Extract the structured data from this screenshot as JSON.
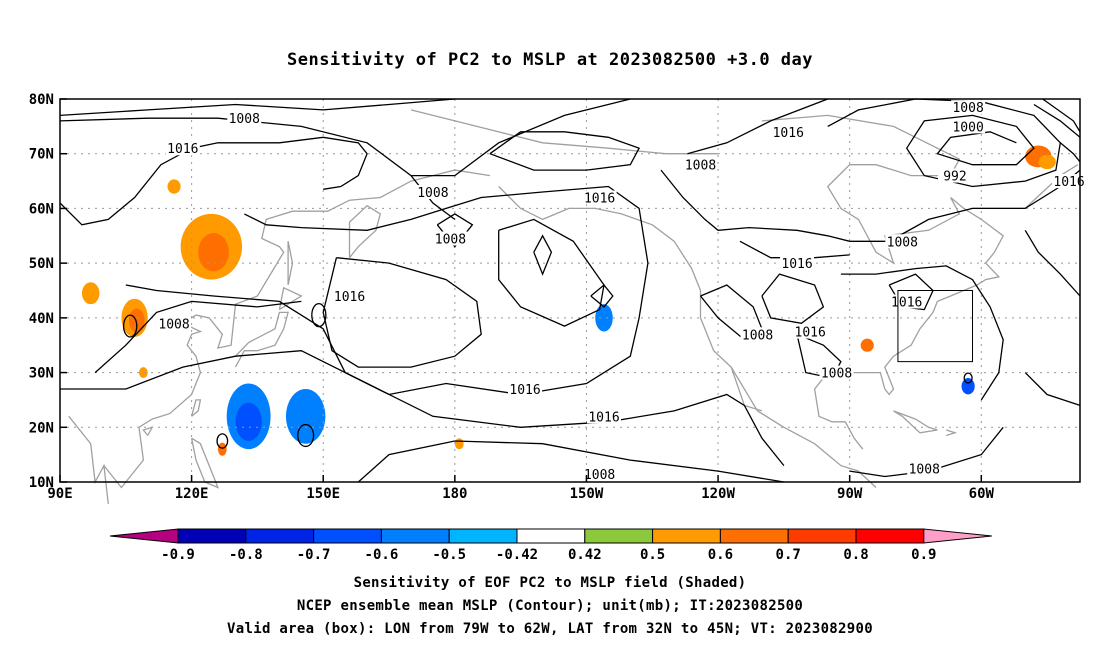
{
  "chart_data": {
    "type": "heatmap",
    "title": "Sensitivity of PC2 to MSLP at 2023082500 +3.0 day",
    "x_ticks": [
      "90E",
      "120E",
      "150E",
      "180",
      "150W",
      "120W",
      "90W",
      "60W"
    ],
    "y_ticks": [
      "10N",
      "20N",
      "30N",
      "40N",
      "50N",
      "60N",
      "70N",
      "80N"
    ],
    "x_tick_lon": [
      90,
      120,
      150,
      180,
      210,
      240,
      270,
      300
    ],
    "y_tick_lat": [
      10,
      20,
      30,
      40,
      50,
      60,
      70,
      80
    ],
    "lon_range": [
      90,
      322.5
    ],
    "lat_range": [
      10,
      80
    ],
    "grid": true,
    "colorbar": {
      "labels": [
        "-0.9",
        "-0.8",
        "-0.7",
        "-0.6",
        "-0.5",
        "-0.42",
        "0.42",
        "0.5",
        "0.6",
        "0.7",
        "0.8",
        "0.9"
      ],
      "colors": [
        "#b5007f",
        "#0000b4",
        "#0024e6",
        "#0050ff",
        "#0080ff",
        "#00b4ff",
        "#ffffff",
        "#8cc83c",
        "#ff9b00",
        "#ff6e00",
        "#ff3c00",
        "#ff0000",
        "#ff9ec8"
      ]
    },
    "contour_labels": [
      {
        "text": "1008",
        "lon": 132,
        "lat": 76.5
      },
      {
        "text": "1016",
        "lon": 118,
        "lat": 71
      },
      {
        "text": "1008",
        "lon": 175,
        "lat": 63
      },
      {
        "text": "1008",
        "lon": 179,
        "lat": 54.5
      },
      {
        "text": "1016",
        "lon": 156,
        "lat": 44
      },
      {
        "text": "1008",
        "lon": 116,
        "lat": 39
      },
      {
        "text": "1016",
        "lon": 196,
        "lat": 27
      },
      {
        "text": "1016",
        "lon": 214,
        "lat": 22
      },
      {
        "text": "1008",
        "lon": 213,
        "lat": 11.5
      },
      {
        "text": "1016",
        "lon": 213,
        "lat": 62
      },
      {
        "text": "1008",
        "lon": 236,
        "lat": 68
      },
      {
        "text": "1016",
        "lon": 256,
        "lat": 74
      },
      {
        "text": "1016",
        "lon": 258,
        "lat": 50
      },
      {
        "text": "1016",
        "lon": 261,
        "lat": 37.5
      },
      {
        "text": "1008",
        "lon": 249,
        "lat": 37
      },
      {
        "text": "1008",
        "lon": 267,
        "lat": 30
      },
      {
        "text": "1008",
        "lon": 282,
        "lat": 54
      },
      {
        "text": "1016",
        "lon": 283,
        "lat": 43
      },
      {
        "text": "1008",
        "lon": 287,
        "lat": 12.5
      },
      {
        "text": "1008",
        "lon": 297,
        "lat": 78.5
      },
      {
        "text": "1000",
        "lon": 297,
        "lat": 75
      },
      {
        "text": "992",
        "lon": 294,
        "lat": 66
      },
      {
        "text": "1016",
        "lon": 320,
        "lat": 65
      }
    ],
    "shaded_regions": [
      {
        "category": "0.5",
        "lon": 124.5,
        "lat": 53,
        "rlon": 7,
        "rlat": 6
      },
      {
        "category": "0.6",
        "lon": 125,
        "lat": 52,
        "rlon": 3.5,
        "rlat": 3.5
      },
      {
        "category": "0.5",
        "lon": 107,
        "lat": 40,
        "rlon": 3,
        "rlat": 3.5
      },
      {
        "category": "0.6",
        "lon": 107.5,
        "lat": 39.5,
        "rlon": 1.8,
        "rlat": 2.2
      },
      {
        "category": "0.5",
        "lon": 97,
        "lat": 44.5,
        "rlon": 2,
        "rlat": 2
      },
      {
        "category": "0.5",
        "lon": 116,
        "lat": 64,
        "rlon": 1.5,
        "rlat": 1.3
      },
      {
        "category": "0.5",
        "lon": 109,
        "lat": 30,
        "rlon": 1,
        "rlat": 1
      },
      {
        "category": "-0.5",
        "lon": 133,
        "lat": 22,
        "rlon": 5,
        "rlat": 6
      },
      {
        "category": "-0.6",
        "lon": 133,
        "lat": 21,
        "rlon": 3,
        "rlat": 3.5
      },
      {
        "category": "-0.5",
        "lon": 146,
        "lat": 22,
        "rlon": 4.5,
        "rlat": 5
      },
      {
        "category": "-0.5",
        "lon": 214,
        "lat": 40,
        "rlon": 2,
        "rlat": 2.5
      },
      {
        "category": "0.6",
        "lon": 127,
        "lat": 16,
        "rlon": 1,
        "rlat": 1.2
      },
      {
        "category": "0.5",
        "lon": 181,
        "lat": 17,
        "rlon": 1,
        "rlat": 1
      },
      {
        "category": "0.6",
        "lon": 274,
        "lat": 35,
        "rlon": 1.5,
        "rlat": 1.2
      },
      {
        "category": "0.6",
        "lon": 313,
        "lat": 69.5,
        "rlon": 3,
        "rlat": 2
      },
      {
        "category": "0.5",
        "lon": 315,
        "lat": 68.5,
        "rlon": 2,
        "rlat": 1.3
      },
      {
        "category": "-0.6",
        "lon": 297,
        "lat": 27.5,
        "rlon": 1.5,
        "rlat": 1.5
      }
    ],
    "valid_box": {
      "lon_min": 281,
      "lon_max": 298,
      "lat_min": 32,
      "lat_max": 45
    }
  },
  "footer": {
    "line1": "Sensitivity of EOF PC2 to MSLP field (Shaded)",
    "line2": "NCEP ensemble mean MSLP (Contour); unit(mb); IT:2023082500",
    "line3": "Valid area (box): LON from 79W to 62W, LAT from 32N to 45N; VT: 2023082900"
  }
}
